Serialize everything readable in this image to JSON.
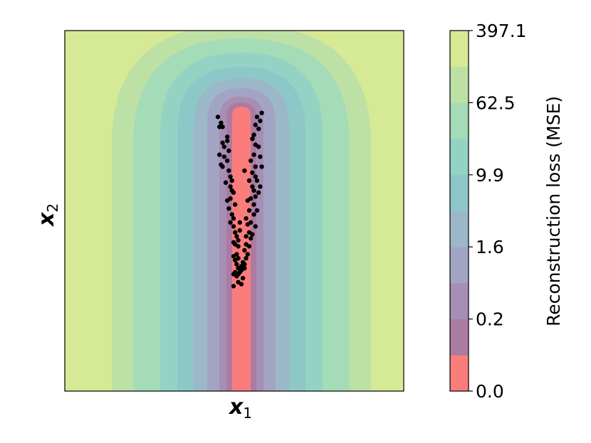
{
  "chart_data": {
    "type": "contour",
    "xlabel": "x",
    "xlabel_sub": "1",
    "ylabel": "x",
    "ylabel_sub": "2",
    "colorbar": {
      "label": "Reconstruction loss (MSE)",
      "tick_labels": [
        "0.0",
        "0.2",
        "1.6",
        "9.9",
        "62.5",
        "397.1"
      ],
      "levels": 10,
      "colors": [
        "#fb7d7b",
        "#ab7ba2",
        "#a78eb5",
        "#a2a4c3",
        "#9cb8c8",
        "#8ec7c8",
        "#94d3c4",
        "#a4dcb8",
        "#bde1a5",
        "#d6e995"
      ]
    },
    "points": [
      [
        -0.15,
        0.77
      ],
      [
        -0.13,
        0.74
      ],
      [
        -0.12,
        0.72
      ],
      [
        -0.14,
        0.72
      ],
      [
        -0.12,
        0.64
      ],
      [
        -0.11,
        0.62
      ],
      [
        -0.14,
        0.58
      ],
      [
        -0.11,
        0.57
      ],
      [
        -0.13,
        0.53
      ],
      [
        -0.12,
        0.52
      ],
      [
        -0.09,
        0.67
      ],
      [
        -0.09,
        0.65
      ],
      [
        -0.08,
        0.6
      ],
      [
        -0.09,
        0.55
      ],
      [
        -0.08,
        0.5
      ],
      [
        -0.07,
        0.47
      ],
      [
        -0.06,
        0.45
      ],
      [
        -0.07,
        0.42
      ],
      [
        -0.06,
        0.4
      ],
      [
        -0.07,
        0.36
      ],
      [
        -0.09,
        0.35
      ],
      [
        -0.05,
        0.39
      ],
      [
        -0.04,
        0.33
      ],
      [
        -0.06,
        0.28
      ],
      [
        -0.05,
        0.26
      ],
      [
        -0.07,
        0.24
      ],
      [
        -0.05,
        0.22
      ],
      [
        -0.04,
        0.19
      ],
      [
        -0.03,
        0.17
      ],
      [
        -0.05,
        0.14
      ],
      [
        -0.04,
        0.13
      ],
      [
        -0.03,
        0.08
      ],
      [
        -0.05,
        0.07
      ],
      [
        -0.04,
        0.05
      ],
      [
        -0.02,
        0.12
      ],
      [
        -0.02,
        0.15
      ],
      [
        -0.01,
        0.2
      ],
      [
        -0.01,
        0.24
      ],
      [
        -0.02,
        0.06
      ],
      [
        -0.03,
        0.03
      ],
      [
        -0.02,
        0.01
      ],
      [
        -0.04,
        -0.01
      ],
      [
        -0.05,
        -0.02
      ],
      [
        -0.03,
        -0.03
      ],
      [
        -0.01,
        -0.01
      ],
      [
        -0.02,
        -0.02
      ],
      [
        0.0,
        0.0
      ],
      [
        0.0,
        0.02
      ],
      [
        0.01,
        0.04
      ],
      [
        0.02,
        0.03
      ],
      [
        0.02,
        0.01
      ],
      [
        0.03,
        0.06
      ],
      [
        0.04,
        0.08
      ],
      [
        0.01,
        -0.04
      ],
      [
        -0.02,
        -0.06
      ],
      [
        -0.05,
        -0.08
      ],
      [
        0.0,
        -0.07
      ],
      [
        0.02,
        0.1
      ],
      [
        0.03,
        0.13
      ],
      [
        0.05,
        0.12
      ],
      [
        0.03,
        0.17
      ],
      [
        0.05,
        0.19
      ],
      [
        0.04,
        0.23
      ],
      [
        0.03,
        0.26
      ],
      [
        0.06,
        0.24
      ],
      [
        0.05,
        0.3
      ],
      [
        0.08,
        0.33
      ],
      [
        0.06,
        0.36
      ],
      [
        0.08,
        0.4
      ],
      [
        0.07,
        0.42
      ],
      [
        0.05,
        0.45
      ],
      [
        0.07,
        0.49
      ],
      [
        0.09,
        0.47
      ],
      [
        0.06,
        0.55
      ],
      [
        0.08,
        0.58
      ],
      [
        0.09,
        0.63
      ],
      [
        0.07,
        0.66
      ],
      [
        0.08,
        0.68
      ],
      [
        0.11,
        0.71
      ],
      [
        0.09,
        0.73
      ],
      [
        0.12,
        0.75
      ],
      [
        0.1,
        0.77
      ],
      [
        0.13,
        0.79
      ],
      [
        0.11,
        0.62
      ],
      [
        0.12,
        0.57
      ],
      [
        0.13,
        0.52
      ],
      [
        0.09,
        0.52
      ],
      [
        0.1,
        0.45
      ],
      [
        0.12,
        0.42
      ],
      [
        0.11,
        0.39
      ],
      [
        0.09,
        0.37
      ],
      [
        0.1,
        0.3
      ],
      [
        0.08,
        0.28
      ],
      [
        0.09,
        0.22
      ],
      [
        0.07,
        0.18
      ],
      [
        0.06,
        0.16
      ],
      [
        0.04,
        0.35
      ],
      [
        0.02,
        0.5
      ],
      [
        -0.1,
        0.44
      ],
      [
        -0.08,
        0.31
      ]
    ]
  }
}
